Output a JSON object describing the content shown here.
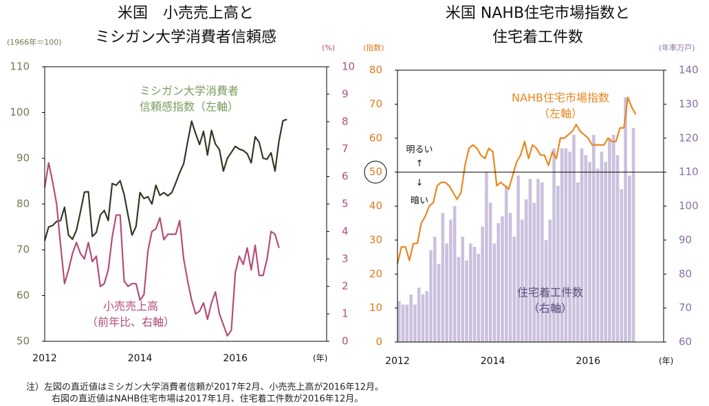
{
  "chart_data": [
    {
      "type": "line",
      "title": [
        "米国　小売売上高と",
        "ミシガン大学消費者信頼感"
      ],
      "y_label": "(1966年＝100)",
      "y2_label": "(%)",
      "x_label": "(年)",
      "categories": [
        "2012",
        null,
        null,
        null,
        null,
        null,
        null,
        null,
        null,
        null,
        null,
        null,
        null,
        null,
        null,
        null,
        null,
        null,
        null,
        null,
        null,
        null,
        null,
        null,
        "2014",
        null,
        null,
        null,
        null,
        null,
        null,
        null,
        null,
        null,
        null,
        null,
        null,
        null,
        null,
        null,
        null,
        null,
        null,
        null,
        null,
        null,
        null,
        null,
        "2016",
        null,
        null,
        null,
        null,
        null,
        null,
        null,
        null,
        null,
        null,
        null,
        null,
        null
      ],
      "ylim": [
        50,
        110
      ],
      "yticks": [
        50,
        60,
        70,
        80,
        90,
        100,
        110
      ],
      "y2lim": [
        0,
        10
      ],
      "y2ticks": [
        0,
        1,
        2,
        3,
        4,
        5,
        6,
        7,
        8,
        9,
        10
      ],
      "series": [
        {
          "name": [
            "ミシガン大学消費者",
            "信頼感指数（左軸）"
          ],
          "color": "#2f3a22",
          "label_color": "#7a9a5c",
          "values": [
            72.0,
            75.0,
            75.3,
            76.2,
            76.4,
            79.3,
            73.2,
            72.3,
            74.3,
            78.3,
            82.6,
            82.7,
            72.9,
            73.8,
            77.6,
            78.6,
            76.4,
            84.5,
            84.1,
            85.1,
            82.1,
            77.5,
            73.2,
            75.1,
            82.5,
            81.2,
            81.6,
            80.0,
            84.1,
            81.9,
            82.5,
            81.8,
            82.5,
            84.6,
            86.9,
            88.8,
            93.6,
            98.1,
            95.4,
            93.0,
            95.9,
            90.7,
            96.1,
            93.1,
            91.9,
            87.2,
            90.0,
            91.3,
            92.6,
            92.0,
            91.7,
            91.0,
            89.0,
            94.7,
            93.5,
            90.0,
            89.8,
            91.2,
            87.2,
            93.8,
            98.2,
            98.5
          ]
        },
        {
          "name": [
            "小売売上高",
            "（前年比、右軸）"
          ],
          "color": "#b44c78",
          "label_color": "#b44c78",
          "axis": "y2",
          "values": [
            5.6,
            6.5,
            5.8,
            5.0,
            3.5,
            2.1,
            2.6,
            3.2,
            3.6,
            3.2,
            3.0,
            3.6,
            2.9,
            3.1,
            2.0,
            2.1,
            2.6,
            3.8,
            4.6,
            4.6,
            2.2,
            2.0,
            2.1,
            2.1,
            1.5,
            1.7,
            3.3,
            4.0,
            4.1,
            4.5,
            3.7,
            3.9,
            3.9,
            3.9,
            4.4,
            3.0,
            2.2,
            1.5,
            1.0,
            1.1,
            1.4,
            0.8,
            1.4,
            1.8,
            1.0,
            0.6,
            0.2,
            0.4,
            2.5,
            3.1,
            2.8,
            3.4,
            2.6,
            3.5,
            2.4,
            2.4,
            3.0,
            4.0,
            3.9,
            3.4,
            null,
            null
          ]
        }
      ]
    },
    {
      "type": "combo",
      "title": [
        "米国 NAHB住宅市場指数と",
        "住宅着工件数"
      ],
      "y_label": "(指数)",
      "y2_label": "(年率万戸)",
      "x_label": "(年)",
      "categories": [
        "2012",
        null,
        null,
        null,
        null,
        null,
        null,
        null,
        null,
        null,
        null,
        null,
        null,
        null,
        null,
        null,
        null,
        null,
        null,
        null,
        null,
        null,
        null,
        null,
        "2014",
        null,
        null,
        null,
        null,
        null,
        null,
        null,
        null,
        null,
        null,
        null,
        null,
        null,
        null,
        null,
        null,
        null,
        null,
        null,
        null,
        null,
        null,
        null,
        "2016",
        null,
        null,
        null,
        null,
        null,
        null,
        null,
        null,
        null,
        null,
        null,
        null
      ],
      "ylim": [
        0,
        80
      ],
      "yticks": [
        0,
        10,
        20,
        30,
        40,
        50,
        60,
        70,
        80
      ],
      "y2lim": [
        60,
        140
      ],
      "y2ticks": [
        60,
        70,
        80,
        90,
        100,
        110,
        120,
        130,
        140
      ],
      "threshold": 50,
      "annotations": [
        "明るい",
        "↑",
        "↓",
        "暗い"
      ],
      "series": [
        {
          "name": [
            "住宅着工件数",
            "（右軸）"
          ],
          "type": "bar",
          "axis": "y2",
          "color": "#cbc1de",
          "label_color": "#5a4e7a",
          "values": [
            72,
            71,
            71,
            74,
            71,
            76,
            74,
            75,
            87,
            91,
            83,
            98,
            89,
            96,
            100,
            85,
            91,
            84,
            89,
            88,
            86,
            94,
            110,
            101,
            89,
            95,
            97,
            106,
            98,
            91,
            109,
            96,
            102,
            108,
            101,
            108,
            107,
            90,
            96,
            117,
            106,
            117,
            117,
            116,
            121,
            107,
            117,
            115,
            113,
            121,
            111,
            116,
            113,
            120,
            121,
            115,
            105,
            132,
            109,
            123,
            null
          ]
        },
        {
          "name": [
            "NAHB住宅市場指数",
            "（左軸）"
          ],
          "type": "line",
          "color": "#e8861e",
          "label_color": "#e8861e",
          "values": [
            23,
            28,
            28,
            24,
            29,
            29,
            35,
            37,
            40,
            41,
            46,
            47,
            47,
            46,
            44,
            42,
            44,
            52,
            57,
            58,
            57,
            55,
            54,
            57,
            56,
            46,
            47,
            46,
            45,
            49,
            53,
            55,
            59,
            54,
            58,
            57,
            55,
            55,
            52,
            56,
            54,
            60,
            60,
            61,
            62,
            64,
            62,
            61,
            60,
            58,
            58,
            58,
            58,
            60,
            59,
            59,
            63,
            63,
            72,
            69,
            67
          ]
        }
      ]
    }
  ],
  "notes": [
    "注）左図の直近値はミシガン大学消費者信頼が2017年2月、小売売上高が2016年12月。",
    "右図の直近値はNAHB住宅市場は2017年1月、住宅着工件数が2016年12月。"
  ]
}
